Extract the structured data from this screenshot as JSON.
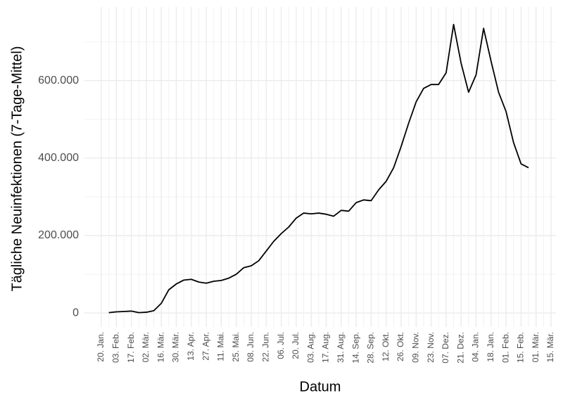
{
  "chart_data": {
    "type": "line",
    "x_label": "Datum",
    "y_label": "Tägliche Neuinfektionen (7-Tage-Mittel)",
    "categories": [
      "20. Jan.",
      null,
      "03. Feb.",
      null,
      "17. Feb.",
      null,
      "02. Mär.",
      null,
      "16. Mär.",
      null,
      "30. Mär.",
      null,
      "13. Apr.",
      null,
      "27. Apr.",
      null,
      "11. Mai.",
      null,
      "25. Mai.",
      null,
      "08. Jun.",
      null,
      "22. Jun.",
      null,
      "06. Jul.",
      null,
      "20. Jul.",
      null,
      "03. Aug.",
      null,
      "17. Aug.",
      null,
      "31. Aug.",
      null,
      "14. Sep.",
      null,
      "28. Sep.",
      null,
      "12. Okt.",
      null,
      "26. Okt.",
      null,
      "09. Nov.",
      null,
      "23. Nov.",
      null,
      "07. Dez.",
      null,
      "21. Dez.",
      null,
      "04. Jan.",
      null,
      "18. Jan.",
      null,
      "01. Feb.",
      null,
      "15. Feb.",
      null,
      "01. Mär.",
      null,
      "15. Mär."
    ],
    "values": [
      null,
      1000,
      3000,
      4000,
      5000,
      1000,
      2000,
      6000,
      25000,
      60000,
      75000,
      85000,
      87000,
      80000,
      77000,
      82000,
      84000,
      90000,
      100000,
      117000,
      122000,
      135000,
      160000,
      185000,
      205000,
      222000,
      245000,
      258000,
      256000,
      258000,
      255000,
      250000,
      265000,
      263000,
      285000,
      292000,
      290000,
      318000,
      340000,
      375000,
      430000,
      490000,
      545000,
      580000,
      590000,
      590000,
      620000,
      745000,
      645000,
      570000,
      615000,
      735000,
      650000,
      570000,
      520000,
      440000,
      385000,
      375000,
      null,
      null,
      null
    ],
    "color": "#000000",
    "ylim": [
      -36000,
      790000
    ],
    "yticks": [
      0,
      {
        "value": 200000,
        "label": "200.000"
      },
      {
        "value": 400000,
        "label": "400.000"
      },
      {
        "value": 600000,
        "label": "600.000"
      }
    ],
    "grid": true
  }
}
